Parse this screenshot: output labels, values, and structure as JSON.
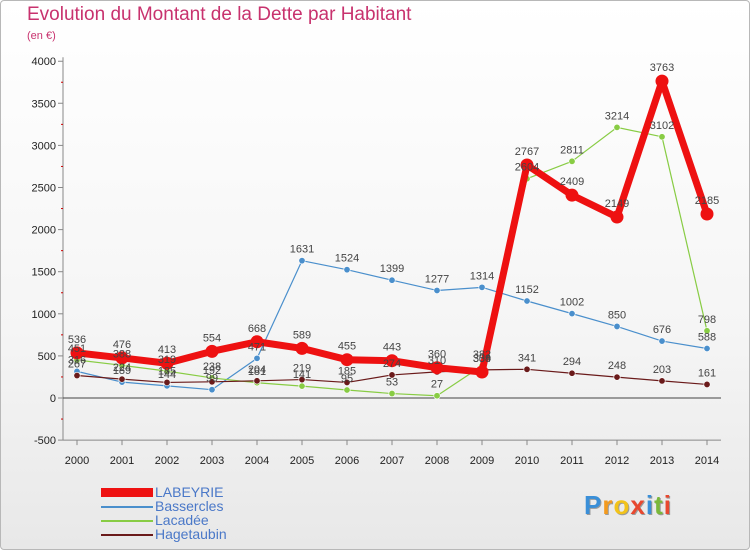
{
  "header": {
    "title": "Evolution du Montant de la Dette par Habitant",
    "subtitle": "(en €)"
  },
  "logo": {
    "letters": [
      "P",
      "r",
      "o",
      "x",
      "i",
      "t",
      "i"
    ],
    "colors": [
      "#3a8fd8",
      "#f39a1e",
      "#f2c31a",
      "#e8482f",
      "#3a8fd8",
      "#7ab83a",
      "#e8482f"
    ]
  },
  "chart_data": {
    "type": "line",
    "title": "Evolution du Montant de la Dette par Habitant",
    "ylabel": "(en €)",
    "xlabel": "",
    "x": [
      "2000",
      "2001",
      "2002",
      "2003",
      "2004",
      "2005",
      "2006",
      "2007",
      "2008",
      "2009",
      "2010",
      "2011",
      "2012",
      "2013",
      "2014"
    ],
    "ylim": [
      -500,
      4000
    ],
    "yticks": [
      "-500",
      "0",
      "500",
      "1000",
      "1500",
      "2000",
      "2500",
      "3000",
      "3500",
      "4000"
    ],
    "grid": false,
    "legend": "bottom-left",
    "series": [
      {
        "name": "LABEYRIE",
        "color": "#ee1111",
        "values": [
          536,
          476,
          413,
          554,
          668,
          589,
          455,
          443,
          360,
          309,
          2767,
          2409,
          2149,
          3763,
          2185
        ],
        "labels": [
          "536",
          "476",
          "413",
          "554",
          "668",
          "589",
          "455",
          "443",
          "360",
          "309",
          "2767",
          "2409",
          "2149",
          "3763",
          "2185"
        ]
      },
      {
        "name": "Bassercles",
        "color": "#4a8fcc",
        "values": [
          316,
          189,
          144,
          99,
          471,
          1631,
          1524,
          1399,
          1277,
          1314,
          1152,
          1002,
          850,
          676,
          588
        ],
        "labels": [
          "316",
          "189",
          "144",
          "99",
          "471",
          "1631",
          "1524",
          "1399",
          "1277",
          "1314",
          "1152",
          "1002",
          "850",
          "676",
          "588"
        ]
      },
      {
        "name": "Lacadée",
        "color": "#88cc44",
        "values": [
          451,
          388,
          319,
          238,
          181,
          141,
          95,
          53,
          27,
          382,
          2604,
          2811,
          3214,
          3102,
          798
        ],
        "labels": [
          "451",
          "388",
          "319",
          "238",
          "181",
          "141",
          "95",
          "53",
          "27",
          "382",
          "2604",
          "2811",
          "3214",
          "3102",
          "798"
        ]
      },
      {
        "name": "Hagetaubin",
        "color": "#6a1a1a",
        "values": [
          267,
          224,
          185,
          192,
          204,
          219,
          185,
          274,
          310,
          334,
          341,
          294,
          248,
          203,
          161
        ],
        "labels": [
          "267",
          "224",
          "185",
          "192",
          "204",
          "219",
          "185",
          "274",
          "310",
          "334",
          "341",
          "294",
          "248",
          "203",
          "161"
        ]
      }
    ]
  }
}
